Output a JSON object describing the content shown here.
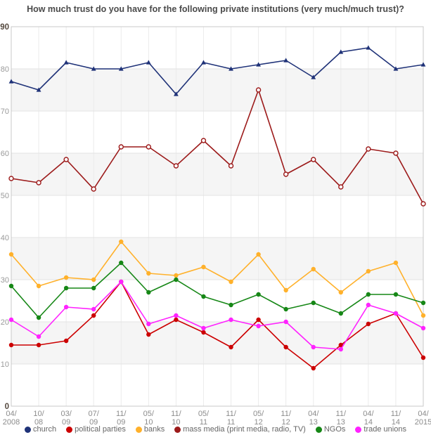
{
  "chart_data": {
    "type": "line",
    "title": "How much trust do you have for the following private institutions (very much/much trust)?",
    "categories": [
      [
        "04/",
        "2008"
      ],
      [
        "10/",
        "08"
      ],
      [
        "03/",
        "09"
      ],
      [
        "07/",
        "09"
      ],
      [
        "11/",
        "09"
      ],
      [
        "05/",
        "10"
      ],
      [
        "11/",
        "10"
      ],
      [
        "05/",
        "11"
      ],
      [
        "11/",
        "11"
      ],
      [
        "05/",
        "12"
      ],
      [
        "11/",
        "12"
      ],
      [
        "04/",
        "13"
      ],
      [
        "11/",
        "13"
      ],
      [
        "04/",
        "14"
      ],
      [
        "11/",
        "14"
      ],
      [
        "04/",
        "2015"
      ]
    ],
    "ylim": [
      0,
      90
    ],
    "ytick_step": 10,
    "grid": "on",
    "legend_position": "bottom",
    "series": [
      {
        "name": "church",
        "color": "#1F3278",
        "marker": "triangle",
        "values": [
          77,
          75,
          81.5,
          80,
          80,
          81.5,
          74,
          81.5,
          80,
          81,
          82,
          78,
          84,
          85,
          80,
          81
        ]
      },
      {
        "name": "political parties",
        "color": "#CC0001",
        "marker": "circle",
        "values": [
          14.5,
          14.5,
          15.5,
          21.5,
          29.5,
          17,
          20.5,
          17.5,
          14,
          20.5,
          14,
          9,
          14.5,
          19.5,
          22,
          11.5
        ]
      },
      {
        "name": "banks",
        "color": "#FFB12B",
        "marker": "circle",
        "values": [
          36,
          28.5,
          30.5,
          30,
          39,
          31.5,
          31,
          33,
          29.5,
          36,
          27.5,
          32.5,
          27,
          32,
          34,
          21.5
        ]
      },
      {
        "name": "mass media (print media, radio, TV)",
        "color": "#9C1A1A",
        "marker": "open-circle",
        "values": [
          54,
          53,
          58.5,
          51.5,
          61.5,
          61.5,
          57,
          63,
          57,
          75,
          55,
          58.5,
          52,
          61,
          60,
          48
        ]
      },
      {
        "name": "NGOs",
        "color": "#168716",
        "marker": "circle",
        "values": [
          28.5,
          21,
          28,
          28,
          34,
          27,
          30,
          26,
          24,
          26.5,
          23,
          24.5,
          22,
          26.5,
          26.5,
          24.5
        ]
      },
      {
        "name": "trade unions",
        "color": "#FF22FF",
        "marker": "circle",
        "values": [
          20.5,
          16.5,
          23.5,
          23,
          29.5,
          19.5,
          21.5,
          18.5,
          20.5,
          19,
          20,
          14,
          13.5,
          24,
          22,
          18.5
        ]
      }
    ]
  }
}
